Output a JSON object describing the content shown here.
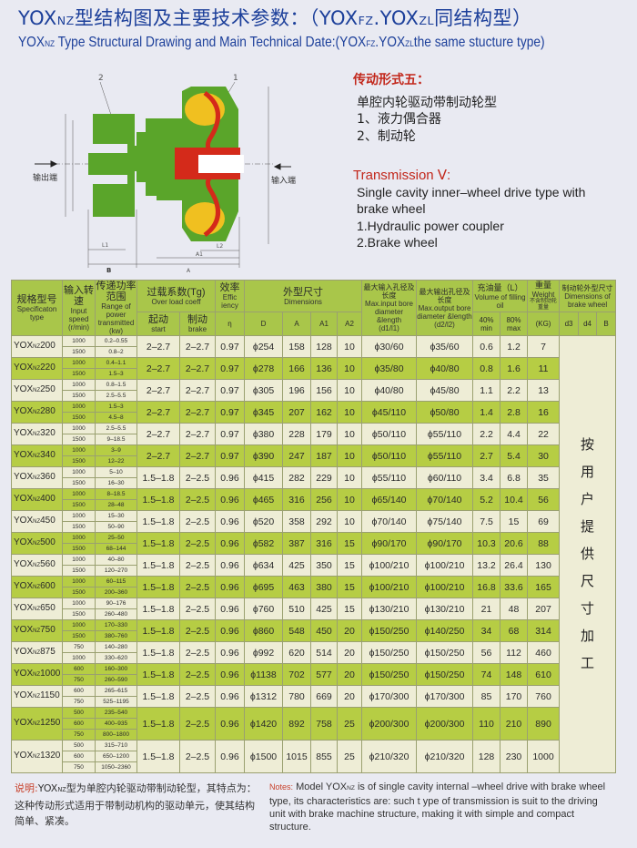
{
  "title_cn": {
    "prefix": "YOX",
    "prefix_sub": "NZ",
    "main": "型结构图及主要技术参数：（YOX",
    "sub2": "FZ",
    ".sep": ".",
    "mid": ".YOX",
    "sub3": "ZL",
    "tail": "同结构型）"
  },
  "title_en": {
    "prefix": "YOX",
    "prefix_sub": "NZ",
    "main": " Type Structural Drawing and Main Technical Date:(YOX",
    "sub2": "FZ",
    "mid": ".YOX",
    "sub3": "ZL",
    "tail": "the same stucture type)"
  },
  "diagram": {
    "label_out": "输出端",
    "label_in": "输入端",
    "part1": "1",
    "part2": "2",
    "dim_B": "B",
    "dim_A": "A",
    "dim_A1": "A1",
    "dim_L1": "L1",
    "dim_L2": "L2"
  },
  "transmission": {
    "heading_cn": "传动形式五：",
    "line1_cn": "单腔内轮驱动带制动轮型",
    "line2_cn": "1、液力偶合器",
    "line3_cn": "2、制动轮",
    "heading_en": "Transmission Ⅴ:",
    "line1_en": "Single cavity inner–wheel drive type with",
    "line1b_en": "brake wheel",
    "line2_en": "1.Hydraulic power coupler",
    "line3_en": "2.Brake wheel"
  },
  "table": {
    "headers": {
      "spec_cn": "规格型号",
      "spec_en": "Specificaton type",
      "speed_cn": "输入转速",
      "speed_en": "Input speed",
      "speed_unit": "(r/min)",
      "power_cn": "传递功率范围",
      "power_en": "Range of power transmitted",
      "power_unit": "(kw)",
      "overload_cn": "过载系数(Tg)",
      "overload_en": "Over load coeff",
      "start_cn": "起动",
      "start_en": "start",
      "brake_cn": "制动",
      "brake_en": "brake",
      "eff_cn": "效率",
      "eff_en": "Effic iency",
      "eff_sym": "η",
      "dims_cn": "外型尺寸",
      "dims_en": "Dimensions",
      "D": "D",
      "A": "A",
      "A1": "A1",
      "A2": "A2",
      "d1_cn": "最大输入孔径及长度",
      "d1_en": "Max.input bore diameter &length",
      "d1_unit": "(d1/l1)",
      "d2_cn": "最大输出孔径及长度",
      "d2_en": "Max.output bore diameter &length",
      "d2_unit": "(d2/l2)",
      "oil_cn": "充油量（L）",
      "oil_en": "Volume of filling oil",
      "oil_min": "40% min",
      "oil_max": "80% max",
      "weight_cn": "重量",
      "weight_en": "Weight",
      "weight_note": "不含制动轮重量",
      "weight_unit": "(KG)",
      "bw_cn": "制动轮外型尺寸",
      "bw_en": "Dimensions of brake wheel",
      "d3": "d3",
      "d4": "d4",
      "B": "B"
    },
    "brake_wheel_note": "按用户提供尺寸加工",
    "rows": [
      {
        "model": "YOX",
        "sub": "NZ",
        "size": "200",
        "speeds": [
          "1000",
          "1500"
        ],
        "power": [
          "0.2–0.55",
          "0.8–2"
        ],
        "start": "2–2.7",
        "brake": "2–2.7",
        "eff": "0.97",
        "D": "ϕ254",
        "A": "158",
        "A1": "128",
        "A2": "10",
        "d1": "ϕ30/60",
        "d2": "ϕ35/60",
        "oil_min": "0.6",
        "oil_max": "1.2",
        "weight": "7"
      },
      {
        "model": "YOX",
        "sub": "NZ",
        "size": "220",
        "speeds": [
          "1000",
          "1500"
        ],
        "power": [
          "0.4–1.1",
          "1.5–3"
        ],
        "start": "2–2.7",
        "brake": "2–2.7",
        "eff": "0.97",
        "D": "ϕ278",
        "A": "166",
        "A1": "136",
        "A2": "10",
        "d1": "ϕ35/80",
        "d2": "ϕ40/80",
        "oil_min": "0.8",
        "oil_max": "1.6",
        "weight": "11"
      },
      {
        "model": "YOX",
        "sub": "NZ",
        "size": "250",
        "speeds": [
          "1000",
          "1500"
        ],
        "power": [
          "0.8–1.5",
          "2.5–5.5"
        ],
        "start": "2–2.7",
        "brake": "2–2.7",
        "eff": "0.97",
        "D": "ϕ305",
        "A": "196",
        "A1": "156",
        "A2": "10",
        "d1": "ϕ40/80",
        "d2": "ϕ45/80",
        "oil_min": "1.1",
        "oil_max": "2.2",
        "weight": "13"
      },
      {
        "model": "YOX",
        "sub": "NZ",
        "size": "280",
        "speeds": [
          "1000",
          "1500"
        ],
        "power": [
          "1.5–3",
          "4.5–8"
        ],
        "start": "2–2.7",
        "brake": "2–2.7",
        "eff": "0.97",
        "D": "ϕ345",
        "A": "207",
        "A1": "162",
        "A2": "10",
        "d1": "ϕ45/110",
        "d2": "ϕ50/80",
        "oil_min": "1.4",
        "oil_max": "2.8",
        "weight": "16"
      },
      {
        "model": "YOX",
        "sub": "NZ",
        "size": "320",
        "speeds": [
          "1000",
          "1500"
        ],
        "power": [
          "2.5–5.5",
          "9–18.5"
        ],
        "start": "2–2.7",
        "brake": "2–2.7",
        "eff": "0.97",
        "D": "ϕ380",
        "A": "228",
        "A1": "179",
        "A2": "10",
        "d1": "ϕ50/110",
        "d2": "ϕ55/110",
        "oil_min": "2.2",
        "oil_max": "4.4",
        "weight": "22"
      },
      {
        "model": "YOX",
        "sub": "NZ",
        "size": "340",
        "speeds": [
          "1000",
          "1500"
        ],
        "power": [
          "3–9",
          "12–22"
        ],
        "start": "2–2.7",
        "brake": "2–2.7",
        "eff": "0.97",
        "D": "ϕ390",
        "A": "247",
        "A1": "187",
        "A2": "10",
        "d1": "ϕ50/110",
        "d2": "ϕ55/110",
        "oil_min": "2.7",
        "oil_max": "5.4",
        "weight": "30"
      },
      {
        "model": "YOX",
        "sub": "NZ",
        "size": "360",
        "speeds": [
          "1000",
          "1500"
        ],
        "power": [
          "5–10",
          "16–30"
        ],
        "start": "1.5–1.8",
        "brake": "2–2.5",
        "eff": "0.96",
        "D": "ϕ415",
        "A": "282",
        "A1": "229",
        "A2": "10",
        "d1": "ϕ55/110",
        "d2": "ϕ60/110",
        "oil_min": "3.4",
        "oil_max": "6.8",
        "weight": "35"
      },
      {
        "model": "YOX",
        "sub": "NZ",
        "size": "400",
        "speeds": [
          "1000",
          "1500"
        ],
        "power": [
          "8–18.5",
          "28–48"
        ],
        "start": "1.5–1.8",
        "brake": "2–2.5",
        "eff": "0.96",
        "D": "ϕ465",
        "A": "316",
        "A1": "256",
        "A2": "10",
        "d1": "ϕ65/140",
        "d2": "ϕ70/140",
        "oil_min": "5.2",
        "oil_max": "10.4",
        "weight": "56"
      },
      {
        "model": "YOX",
        "sub": "NZ",
        "size": "450",
        "speeds": [
          "1000",
          "1500"
        ],
        "power": [
          "15–30",
          "50–90"
        ],
        "start": "1.5–1.8",
        "brake": "2–2.5",
        "eff": "0.96",
        "D": "ϕ520",
        "A": "358",
        "A1": "292",
        "A2": "10",
        "d1": "ϕ70/140",
        "d2": "ϕ75/140",
        "oil_min": "7.5",
        "oil_max": "15",
        "weight": "69"
      },
      {
        "model": "YOX",
        "sub": "NZ",
        "size": "500",
        "speeds": [
          "1000",
          "1500"
        ],
        "power": [
          "25–50",
          "68–144"
        ],
        "start": "1.5–1.8",
        "brake": "2–2.5",
        "eff": "0.96",
        "D": "ϕ582",
        "A": "387",
        "A1": "316",
        "A2": "15",
        "d1": "ϕ90/170",
        "d2": "ϕ90/170",
        "oil_min": "10.3",
        "oil_max": "20.6",
        "weight": "88"
      },
      {
        "model": "YOX",
        "sub": "NZ",
        "size": "560",
        "speeds": [
          "1000",
          "1500"
        ],
        "power": [
          "40–80",
          "120–270"
        ],
        "start": "1.5–1.8",
        "brake": "2–2.5",
        "eff": "0.96",
        "D": "ϕ634",
        "A": "425",
        "A1": "350",
        "A2": "15",
        "d1": "ϕ100/210",
        "d2": "ϕ100/210",
        "oil_min": "13.2",
        "oil_max": "26.4",
        "weight": "130"
      },
      {
        "model": "YOX",
        "sub": "NZ",
        "size": "600",
        "speeds": [
          "1000",
          "1500"
        ],
        "power": [
          "60–115",
          "200–360"
        ],
        "start": "1.5–1.8",
        "brake": "2–2.5",
        "eff": "0.96",
        "D": "ϕ695",
        "A": "463",
        "A1": "380",
        "A2": "15",
        "d1": "ϕ100/210",
        "d2": "ϕ100/210",
        "oil_min": "16.8",
        "oil_max": "33.6",
        "weight": "165"
      },
      {
        "model": "YOX",
        "sub": "NZ",
        "size": "650",
        "speeds": [
          "1000",
          "1500"
        ],
        "power": [
          "90–176",
          "260–480"
        ],
        "start": "1.5–1.8",
        "brake": "2–2.5",
        "eff": "0.96",
        "D": "ϕ760",
        "A": "510",
        "A1": "425",
        "A2": "15",
        "d1": "ϕ130/210",
        "d2": "ϕ130/210",
        "oil_min": "21",
        "oil_max": "48",
        "weight": "207"
      },
      {
        "model": "YOX",
        "sub": "NZ",
        "size": "750",
        "speeds": [
          "1000",
          "1500"
        ],
        "power": [
          "170–330",
          "380–760"
        ],
        "start": "1.5–1.8",
        "brake": "2–2.5",
        "eff": "0.96",
        "D": "ϕ860",
        "A": "548",
        "A1": "450",
        "A2": "20",
        "d1": "ϕ150/250",
        "d2": "ϕ140/250",
        "oil_min": "34",
        "oil_max": "68",
        "weight": "314"
      },
      {
        "model": "YOX",
        "sub": "NZ",
        "size": "875",
        "speeds": [
          "750",
          "1000"
        ],
        "power": [
          "140–280",
          "330–620"
        ],
        "start": "1.5–1.8",
        "brake": "2–2.5",
        "eff": "0.96",
        "D": "ϕ992",
        "A": "620",
        "A1": "514",
        "A2": "20",
        "d1": "ϕ150/250",
        "d2": "ϕ150/250",
        "oil_min": "56",
        "oil_max": "112",
        "weight": "460"
      },
      {
        "model": "YOX",
        "sub": "NZ",
        "size": "1000",
        "speeds": [
          "600",
          "750"
        ],
        "power": [
          "160–300",
          "260–590"
        ],
        "start": "1.5–1.8",
        "brake": "2–2.5",
        "eff": "0.96",
        "D": "ϕ1138",
        "A": "702",
        "A1": "577",
        "A2": "20",
        "d1": "ϕ150/250",
        "d2": "ϕ150/250",
        "oil_min": "74",
        "oil_max": "148",
        "weight": "610"
      },
      {
        "model": "YOX",
        "sub": "NZ",
        "size": "1150",
        "speeds": [
          "600",
          "750"
        ],
        "power": [
          "265–615",
          "525–1195"
        ],
        "start": "1.5–1.8",
        "brake": "2–2.5",
        "eff": "0.96",
        "D": "ϕ1312",
        "A": "780",
        "A1": "669",
        "A2": "20",
        "d1": "ϕ170/300",
        "d2": "ϕ170/300",
        "oil_min": "85",
        "oil_max": "170",
        "weight": "760"
      },
      {
        "model": "YOX",
        "sub": "NZ",
        "size": "1250",
        "speeds": [
          "500",
          "600",
          "750"
        ],
        "power": [
          "235–540",
          "400–935",
          "800–1800"
        ],
        "start": "1.5–1.8",
        "brake": "2–2.5",
        "eff": "0.96",
        "D": "ϕ1420",
        "A": "892",
        "A1": "758",
        "A2": "25",
        "d1": "ϕ200/300",
        "d2": "ϕ200/300",
        "oil_min": "110",
        "oil_max": "210",
        "weight": "890"
      },
      {
        "model": "YOX",
        "sub": "NZ",
        "size": "1320",
        "speeds": [
          "500",
          "600",
          "750"
        ],
        "power": [
          "315–710",
          "650–1200",
          "1050–2360"
        ],
        "start": "1.5–1.8",
        "brake": "2–2.5",
        "eff": "0.96",
        "D": "ϕ1500",
        "A": "1015",
        "A1": "855",
        "A2": "25",
        "d1": "ϕ210/320",
        "d2": "ϕ210/320",
        "oil_min": "128",
        "oil_max": "230",
        "weight": "1000"
      }
    ]
  },
  "notes": {
    "label_cn": "说明:",
    "text_cn_a": "YOX",
    "text_cn_sub": "NZ",
    "text_cn_b": "型为单腔内轮驱动带制动轮型，其特点为：这种传动形式适用于带制动机构的驱动单元，使其结构简单、紧凑。",
    "label_en": "Notes:",
    "text_en_a": " Model YOX",
    "text_en_sub": "NZ",
    "text_en_b": " is of single cavity internal –wheel drive with brake wheel type, its characteristics are: such t ype of transmission is suit to the driving unit with brake machine structure, making it with simple and compact structure."
  },
  "colors": {
    "title": "#1c3f9a",
    "header_green": "#a9c64a",
    "row_green": "#b6cd44",
    "row_light": "#eeedd6",
    "accent_red": "#c2271b"
  }
}
